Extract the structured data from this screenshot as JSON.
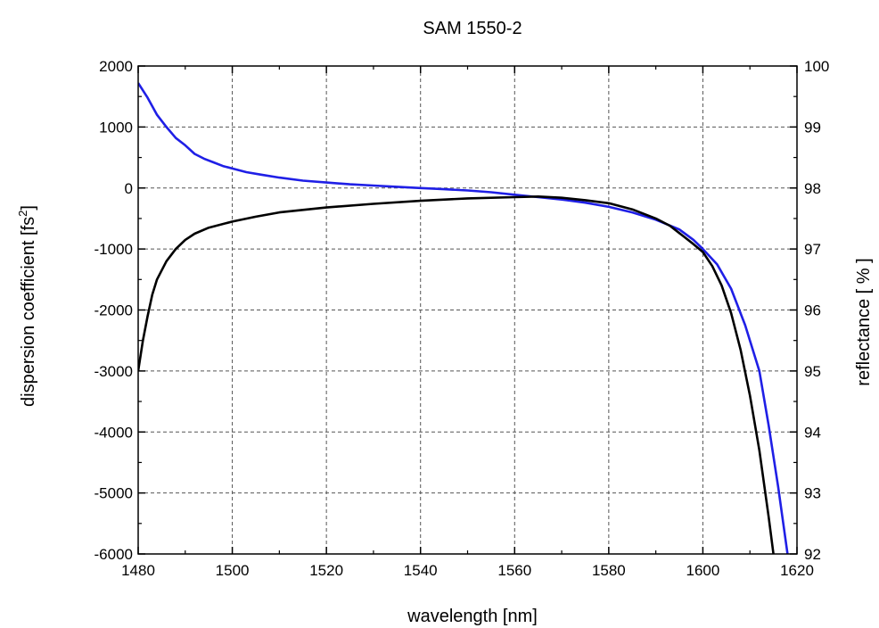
{
  "chart_data": {
    "type": "line",
    "title": "SAM 1550-2",
    "xlabel": "wavelength [nm]",
    "ylabel_left": "dispersion coefficient [fs",
    "ylabel_left_sup": "2",
    "ylabel_left_end": "]",
    "ylabel_right": "reflectance [ % ]",
    "xlim": [
      1480,
      1620
    ],
    "ylim_left": [
      -6000,
      2000
    ],
    "ylim_right": [
      92,
      100
    ],
    "x_ticks": [
      "1480",
      "1500",
      "1520",
      "1540",
      "1560",
      "1580",
      "1600",
      "1620"
    ],
    "y_left_ticks": [
      "2000",
      "1000",
      "0",
      "-1000",
      "-2000",
      "-3000",
      "-4000",
      "-5000",
      "-6000"
    ],
    "y_right_ticks": [
      "100",
      "99",
      "98",
      "97",
      "96",
      "95",
      "94",
      "93",
      "92"
    ],
    "grid": true,
    "colors": {
      "dispersion": "#1f1fe6",
      "reflectance": "#000000",
      "left_label": "#1f1fe6"
    },
    "series": [
      {
        "axis": "left",
        "x": [
          1480,
          1482,
          1484,
          1486,
          1488,
          1490,
          1492,
          1494,
          1496,
          1498,
          1500,
          1503,
          1506,
          1510,
          1515,
          1520,
          1525,
          1530,
          1535,
          1540,
          1545,
          1550,
          1555,
          1560,
          1565,
          1570,
          1575,
          1580,
          1585,
          1590,
          1595,
          1598,
          1600,
          1603,
          1606,
          1609,
          1612,
          1614,
          1616,
          1618
        ],
        "y": [
          1720,
          1480,
          1200,
          1000,
          820,
          700,
          560,
          480,
          420,
          360,
          320,
          260,
          220,
          170,
          120,
          90,
          60,
          40,
          20,
          0,
          -20,
          -40,
          -70,
          -110,
          -150,
          -190,
          -240,
          -310,
          -400,
          -520,
          -680,
          -850,
          -1000,
          -1250,
          -1650,
          -2250,
          -3000,
          -3900,
          -4900,
          -6000
        ]
      },
      {
        "axis": "right",
        "x": [
          1480,
          1481,
          1482,
          1483,
          1484,
          1486,
          1488,
          1490,
          1492,
          1495,
          1500,
          1505,
          1510,
          1520,
          1530,
          1540,
          1550,
          1560,
          1565,
          1570,
          1575,
          1580,
          1585,
          1590,
          1593,
          1596,
          1598,
          1600,
          1602,
          1604,
          1606,
          1608,
          1610,
          1612,
          1614,
          1615
        ],
        "y": [
          95.0,
          95.5,
          95.9,
          96.25,
          96.5,
          96.8,
          97.0,
          97.15,
          97.25,
          97.35,
          97.45,
          97.53,
          97.6,
          97.68,
          97.74,
          97.79,
          97.83,
          97.85,
          97.86,
          97.84,
          97.8,
          97.75,
          97.65,
          97.5,
          97.38,
          97.2,
          97.08,
          96.95,
          96.72,
          96.4,
          95.95,
          95.35,
          94.6,
          93.7,
          92.6,
          92.0
        ]
      }
    ]
  }
}
